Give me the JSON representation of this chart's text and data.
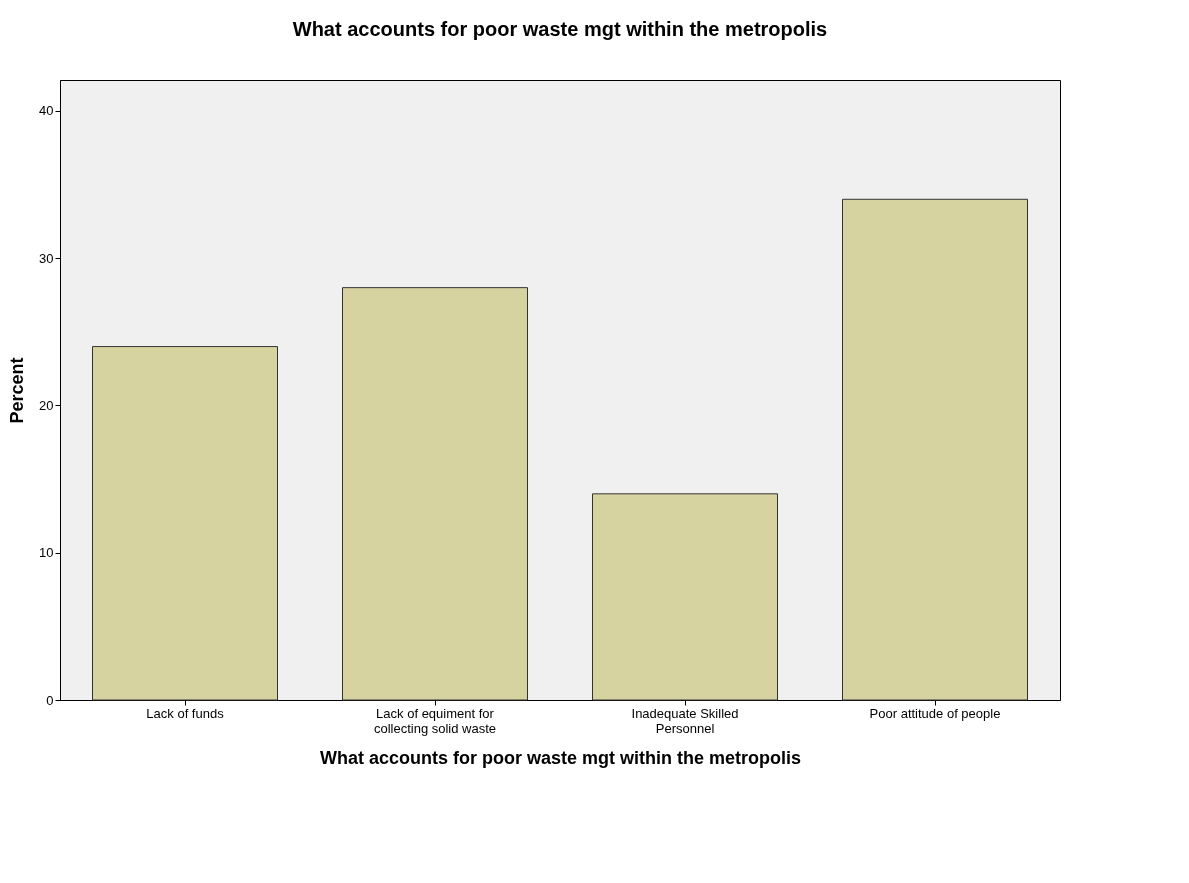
{
  "chart_data": {
    "type": "bar",
    "title": "What accounts for poor waste mgt within the metropolis",
    "xlabel": "What accounts for poor waste mgt within the metropolis",
    "ylabel": "Percent",
    "categories": [
      "Lack of funds",
      "Lack of equiment for collecting solid waste",
      "Inadequate Skilled Personnel",
      "Poor attitude of people"
    ],
    "values": [
      24,
      28,
      14,
      34
    ],
    "color": "#d6d3a0",
    "ylim": [
      0,
      42.1
    ],
    "yticks": [
      0,
      10,
      20,
      30,
      40
    ],
    "grid": false
  }
}
